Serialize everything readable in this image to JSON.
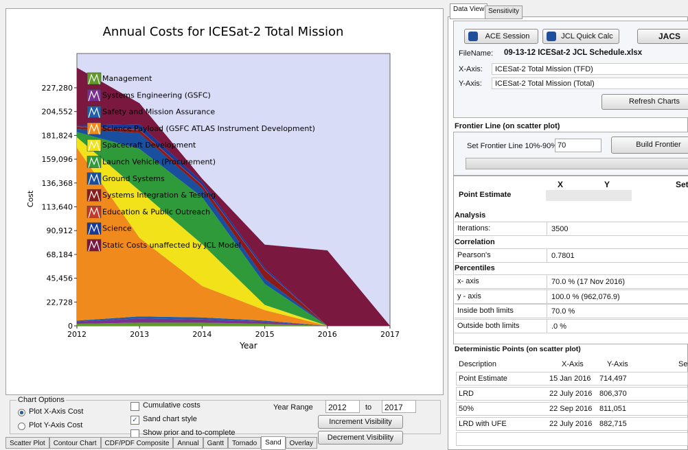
{
  "chart_data": {
    "type": "stacked-area",
    "title": "Annual Costs for ICESat-2 Total Mission",
    "x_label": "Year",
    "y_label": "Cost",
    "x": [
      2012,
      2013,
      2014,
      2015,
      2016,
      2017
    ],
    "xlim": [
      2012,
      2017
    ],
    "xticks": [
      2012,
      2013,
      2014,
      2015,
      2016,
      2017
    ],
    "ylim": [
      0,
      260000
    ],
    "yticks": [
      0,
      {
        "value": 22728,
        "label": "22,728"
      },
      {
        "value": 45456,
        "label": "45,456"
      },
      {
        "value": 68184,
        "label": "68,184"
      },
      {
        "value": 90912,
        "label": "90,912"
      },
      {
        "value": 113640,
        "label": "113,640"
      },
      {
        "value": 136368,
        "label": "136,368"
      },
      {
        "value": 159096,
        "label": "159,096"
      },
      {
        "value": 181824,
        "label": "181,824"
      },
      {
        "value": 204552,
        "label": "204,552"
      },
      {
        "value": 227280,
        "label": "227,280"
      }
    ],
    "series": [
      {
        "name": "Management",
        "color": "#5f9a2a",
        "values": [
          2000,
          3000,
          3000,
          2000,
          0,
          0
        ]
      },
      {
        "name": "Systems Engineering (GSFC)",
        "color": "#7b2f8f",
        "values": [
          2000,
          4000,
          3000,
          2000,
          0,
          0
        ]
      },
      {
        "name": "Safety and Mission Assurance",
        "color": "#1f5fa8",
        "values": [
          1000,
          2000,
          2000,
          1000,
          0,
          0
        ]
      },
      {
        "name": "Science Payload (GSFC ATLAS Instrument Development)",
        "color": "#f08a1c",
        "values": [
          165000,
          75000,
          30000,
          10000,
          0,
          0
        ]
      },
      {
        "name": "Spacecraft Development",
        "color": "#f2e21a",
        "values": [
          10000,
          45000,
          40000,
          5000,
          0,
          0
        ]
      },
      {
        "name": "Launch Vehicle (Procurement)",
        "color": "#2e9a3a",
        "values": [
          5000,
          40000,
          45000,
          20000,
          0,
          0
        ]
      },
      {
        "name": "Ground Systems",
        "color": "#1a4fa0",
        "values": [
          3000,
          15000,
          8000,
          5000,
          0,
          0
        ]
      },
      {
        "name": "Systems Integration & Testing",
        "color": "#8b1a1a",
        "values": [
          2000,
          3000,
          3000,
          8000,
          0,
          0
        ]
      },
      {
        "name": "Education & Public Outreach",
        "color": "#c0392b",
        "values": [
          500,
          500,
          500,
          500,
          0,
          0
        ]
      },
      {
        "name": "Science",
        "color": "#1a3a9a",
        "values": [
          1000,
          5000,
          3000,
          2000,
          0,
          0
        ]
      },
      {
        "name": "Static Costs unaffected by JCL Model",
        "color": "#7a1840",
        "values": [
          55000,
          20000,
          3000,
          22000,
          72000,
          0
        ]
      }
    ]
  },
  "ui": {
    "right_tabs": [
      "Data View",
      "Sensitivity"
    ],
    "ace": "ACE Session",
    "jcl": "JCL Quick Calc",
    "jacs": "JACS",
    "filename_label": "FileName:",
    "filename": "09-13-12 ICESat-2 JCL Schedule.xlsx",
    "xaxis_label": "X-Axis:",
    "xaxis": "ICESat-2 Total Mission (TFD)",
    "yaxis_label": "Y-Axis:",
    "yaxis": "ICESat-2 Total Mission (Total)",
    "refresh": "Refresh Charts",
    "frontier_title": "Frontier Line (on scatter plot)",
    "frontier_label": "Set Frontier Line 10%-90% :",
    "frontier_value": "70",
    "build": "Build Frontier",
    "grid_headers": [
      "X",
      "Y",
      "Set"
    ],
    "point_estimate": "Point Estimate",
    "sections": [
      {
        "title": "Analysis",
        "rows": [
          [
            "Iterations:",
            "3500"
          ]
        ]
      },
      {
        "title": "Correlation",
        "rows": [
          [
            "Pearson's",
            "0.7801"
          ]
        ]
      },
      {
        "title": "Percentiles",
        "rows": [
          [
            "x- axis",
            "70.0 % (17 Nov 2016)"
          ],
          [
            "y - axis",
            "100.0 % (962,076.9)"
          ],
          [
            "Inside both limits",
            "70.0 %"
          ],
          [
            "Outside both limits",
            ".0 %"
          ]
        ]
      }
    ],
    "det_title": "Deterministic Points (on scatter plot)",
    "det_headers": [
      "Description",
      "X-Axis",
      "Y-Axis",
      "Set"
    ],
    "det_rows": [
      [
        "Point Estimate",
        "15 Jan 2016",
        "714,497"
      ],
      [
        "LRD",
        "22 July 2016",
        "806,370"
      ],
      [
        "50%",
        "22 Sep 2016",
        "811,051"
      ],
      [
        "LRD with UFE",
        "22 July 2016",
        "882,715"
      ]
    ],
    "chart_options": "Chart Options",
    "radios": [
      "Plot X-Axis Cost",
      "Plot Y-Axis Cost"
    ],
    "radio_on": [
      true,
      false
    ],
    "checks": [
      "Cumulative costs",
      "Sand chart style",
      "Show prior and to-complete"
    ],
    "checks_on": [
      false,
      true,
      false
    ],
    "year_range": "Year Range",
    "year_from": "2012",
    "to": "to",
    "year_to": "2017",
    "inc": "Increment Visibility",
    "dec": "Decrement Visibility",
    "bottom_tabs": [
      "Scatter Plot",
      "Contour Chart",
      "CDF/PDF Composite",
      "Annual",
      "Gantt",
      "Tornado",
      "Sand",
      "Overlay"
    ],
    "bottom_tab_active": [
      false,
      false,
      false,
      false,
      false,
      false,
      true,
      false
    ]
  }
}
